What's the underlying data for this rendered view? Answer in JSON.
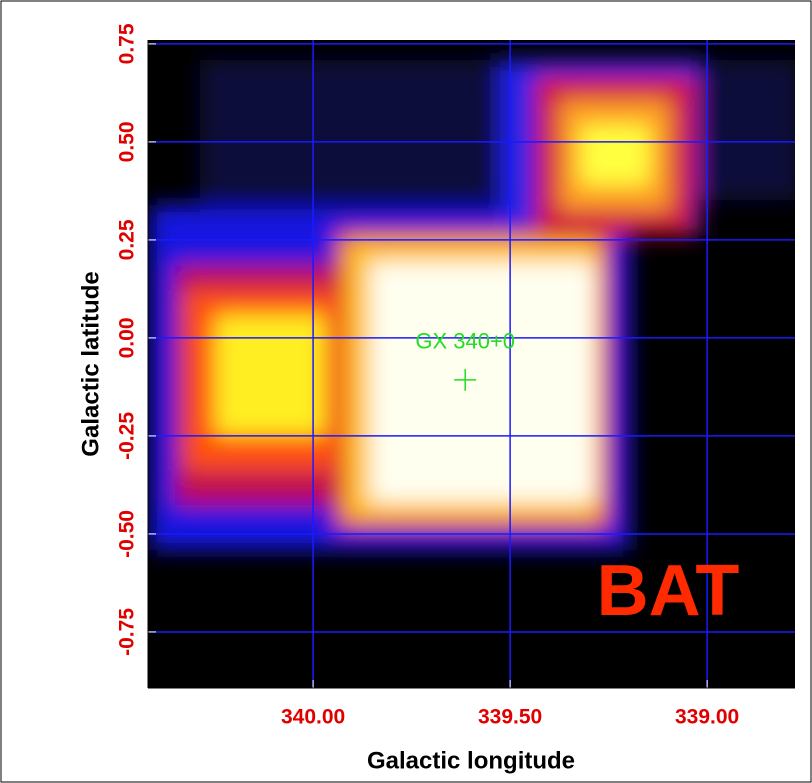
{
  "chart_data": {
    "type": "image",
    "x_label": "Galactic longitude",
    "y_label": "Galactic latitude",
    "xlim": [
      340.419,
      338.777
    ],
    "ylim": [
      -0.893,
      0.76
    ],
    "xticks": [
      {
        "value": 340,
        "label": "340.00"
      },
      {
        "value": 339.5,
        "label": "339.50"
      },
      {
        "value": 339,
        "label": "339.00"
      }
    ],
    "yticks": [
      0.75,
      {
        "value": 0.5,
        "label": "0.50"
      },
      0.25,
      {
        "value": 0,
        "label": "0.00"
      },
      -0.25,
      {
        "value": -0.5,
        "label": "-0.50"
      },
      -0.75
    ],
    "grid": true,
    "grid_color": "#1a1aff",
    "tick_color": "#e00000",
    "annotation": {
      "text": "GX 340+0",
      "x": 339.614,
      "y": -0.107,
      "color": "#22dd22"
    },
    "instrument": "BAT"
  }
}
